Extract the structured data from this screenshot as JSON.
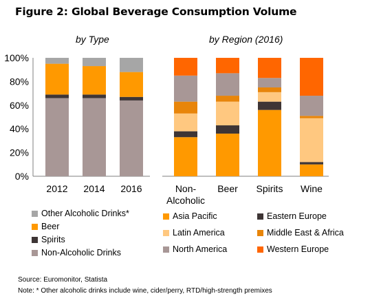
{
  "figure": {
    "title": "Figure 2: Global Beverage Consumption Volume",
    "source": "Source: Euromonitor, Statista",
    "note": "Note: * Other alcoholic drinks include wine, cider/perry, RTD/high-strength premixes"
  },
  "chart_data": [
    {
      "type": "bar",
      "stacked": true,
      "title": "by Type",
      "categories": [
        "2012",
        "2014",
        "2016"
      ],
      "yticks": [
        "0%",
        "20%",
        "40%",
        "60%",
        "80%",
        "100%"
      ],
      "ylim": [
        0,
        100
      ],
      "series": [
        {
          "name": "Non-Alcoholic Drinks",
          "color": "#A89796",
          "values": [
            66,
            66,
            64
          ]
        },
        {
          "name": "Spirits",
          "color": "#3E3535",
          "values": [
            3,
            3,
            3
          ]
        },
        {
          "name": "Beer",
          "color": "#FF9900",
          "values": [
            26,
            24,
            21
          ]
        },
        {
          "name": "Other Alcoholic Drinks*",
          "color": "#A6A6A6",
          "values": [
            5,
            7,
            12
          ]
        }
      ]
    },
    {
      "type": "bar",
      "stacked": true,
      "title": "by Region (2016)",
      "categories": [
        "Non-\nAlcoholic",
        "Beer",
        "Spirits",
        "Wine"
      ],
      "ylim": [
        0,
        100
      ],
      "series": [
        {
          "name": "Asia Pacific",
          "color": "#FF9900",
          "values": [
            33,
            36,
            56,
            10
          ]
        },
        {
          "name": "Eastern Europe",
          "color": "#3E3535",
          "values": [
            5,
            7,
            7,
            2
          ]
        },
        {
          "name": "Latin America",
          "color": "#FFC880",
          "values": [
            15,
            20,
            8,
            37
          ]
        },
        {
          "name": "Middle East & Africa",
          "color": "#E8850A",
          "values": [
            10,
            5,
            4,
            2
          ]
        },
        {
          "name": "North America",
          "color": "#A89796",
          "values": [
            22,
            19,
            8,
            17
          ]
        },
        {
          "name": "Western Europe",
          "color": "#FF6600",
          "values": [
            15,
            13,
            17,
            32
          ]
        }
      ]
    }
  ],
  "legend_left": [
    "Other Alcoholic Drinks*",
    "Beer",
    "Spirits",
    "Non-Alcoholic Drinks"
  ],
  "legend_right": [
    [
      "Asia Pacific",
      "Eastern Europe"
    ],
    [
      "Latin America",
      "Middle East & Africa"
    ],
    [
      "North America",
      "Western Europe"
    ]
  ]
}
